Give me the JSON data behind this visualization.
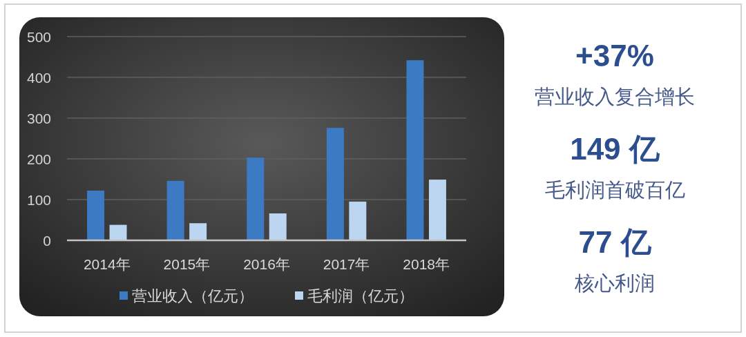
{
  "chart_data": [
    {
      "type": "bar",
      "categories": [
        "2014年",
        "2015年",
        "2016年",
        "2017年",
        "2018年"
      ],
      "series": [
        {
          "name": "营业收入（亿元）",
          "color": "#3c7bc4",
          "values": [
            122,
            146,
            203,
            276,
            442
          ]
        },
        {
          "name": "毛利润（亿元）",
          "color": "#bcd5f0",
          "values": [
            38,
            42,
            66,
            95,
            149
          ]
        }
      ],
      "ylim": [
        0,
        500
      ],
      "yticks": [
        0,
        100,
        200,
        300,
        400,
        500
      ],
      "grid": "y",
      "legend": "bottom"
    },
    {
      "type": "other",
      "annotations": [
        "+37%",
        "营业收入复合增长",
        "149 亿",
        "毛利润首破百亿",
        "77 亿",
        "核心利润"
      ]
    }
  ]
}
